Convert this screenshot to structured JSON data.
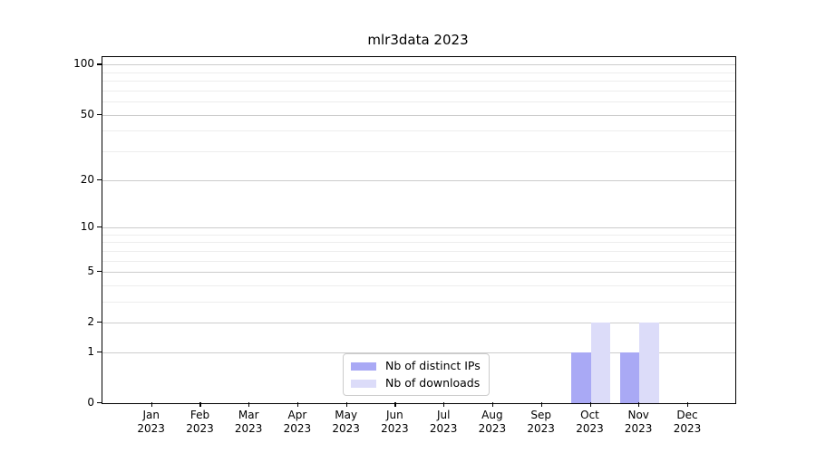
{
  "figure": {
    "background": "#ffffff"
  },
  "chart_data": {
    "type": "bar",
    "title": "mlr3data 2023",
    "categories": [
      "Jan",
      "Feb",
      "Mar",
      "Apr",
      "May",
      "Jun",
      "Jul",
      "Aug",
      "Sep",
      "Oct",
      "Nov",
      "Dec"
    ],
    "year_label": "2023",
    "series": [
      {
        "name": "Nb of distinct IPs",
        "color": "#a9a9f5",
        "values": [
          0,
          0,
          0,
          0,
          0,
          0,
          0,
          0,
          0,
          1,
          1,
          0
        ]
      },
      {
        "name": "Nb of downloads",
        "color": "#dcdcf9",
        "values": [
          0,
          0,
          0,
          0,
          0,
          0,
          0,
          0,
          0,
          2,
          2,
          0
        ]
      }
    ],
    "xlabel": "",
    "ylabel": "",
    "yscale": "log1p",
    "ylim": [
      0,
      111
    ],
    "yticks": [
      0,
      1,
      2,
      5,
      10,
      20,
      50,
      100
    ],
    "yticks_minor": [
      3,
      4,
      6,
      7,
      8,
      9,
      30,
      40,
      60,
      70,
      80,
      90
    ],
    "grid": {
      "axis": "y",
      "major_color": "#cccccc",
      "minor_color": "#ededed"
    },
    "legend": {
      "position": "lower center",
      "entries": [
        "Nb of distinct IPs",
        "Nb of downloads"
      ]
    }
  }
}
